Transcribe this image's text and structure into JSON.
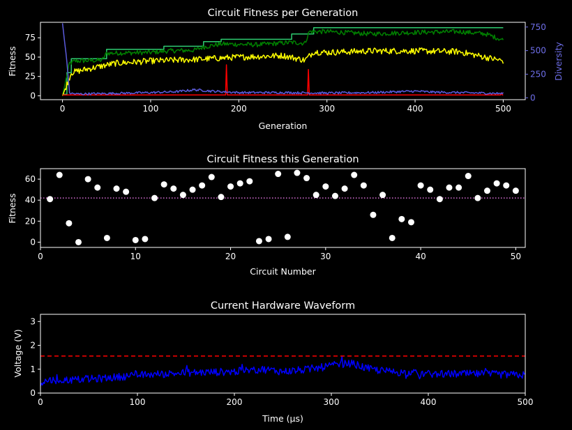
{
  "figure": {
    "background": "#000000"
  },
  "chart_data": [
    {
      "id": "fitness-per-generation",
      "type": "line",
      "title": "Circuit Fitness per Generation",
      "xlabel": "Generation",
      "ylabel": "Fitness",
      "ylabel_right": "Diversity",
      "xlim": [
        -25,
        525
      ],
      "ylim": [
        -5,
        95
      ],
      "ylim_right": [
        -20,
        800
      ],
      "x_ticks": [
        0,
        100,
        200,
        300,
        400,
        500
      ],
      "y_ticks": [
        0,
        25,
        50,
        75
      ],
      "y_ticks_right": [
        0,
        250,
        500,
        750
      ],
      "right_axis_color": "#6e6ee8",
      "grid": false,
      "series": [
        {
          "color": "#2ecc71",
          "axis": "left",
          "style": "step",
          "x": [
            0,
            5,
            10,
            45,
            50,
            100,
            115,
            150,
            160,
            175,
            180,
            225,
            255,
            260,
            280,
            285,
            500
          ],
          "values": [
            2,
            30,
            48,
            48,
            60,
            60,
            64,
            64,
            70,
            70,
            73,
            73,
            73,
            80,
            80,
            88,
            88
          ]
        },
        {
          "color": "#008000",
          "axis": "left",
          "style": "noisy",
          "noise": 3,
          "x": [
            0,
            8,
            15,
            45,
            50,
            100,
            120,
            150,
            160,
            180,
            220,
            260,
            275,
            280,
            300,
            350,
            400,
            450,
            480,
            500
          ],
          "values": [
            0,
            42,
            45,
            46,
            55,
            56,
            58,
            59,
            63,
            67,
            66,
            69,
            68,
            83,
            83,
            80,
            82,
            83,
            80,
            72
          ]
        },
        {
          "color": "#ffff00",
          "axis": "left",
          "style": "noisy",
          "noise": 4,
          "x": [
            0,
            5,
            10,
            30,
            60,
            100,
            150,
            200,
            250,
            275,
            285,
            300,
            350,
            400,
            450,
            500
          ],
          "values": [
            0,
            15,
            30,
            35,
            42,
            45,
            47,
            50,
            52,
            46,
            57,
            56,
            58,
            58,
            57,
            45
          ]
        },
        {
          "color": "#ff0000",
          "axis": "left",
          "style": "spikes",
          "base": 1,
          "spikes": [
            [
              186,
              40
            ],
            [
              279,
              34
            ],
            [
              498,
              4
            ]
          ]
        },
        {
          "color": "#5b5bdc",
          "axis": "right",
          "style": "noisy",
          "noise": 12,
          "x": [
            0,
            5,
            8,
            15,
            50,
            100,
            130,
            150,
            170,
            200,
            250,
            300,
            350,
            400,
            420,
            450,
            500
          ],
          "values": [
            790,
            380,
            50,
            40,
            45,
            55,
            65,
            85,
            70,
            55,
            55,
            50,
            55,
            70,
            60,
            55,
            45
          ]
        }
      ]
    },
    {
      "id": "fitness-this-generation",
      "type": "scatter",
      "title": "Circuit Fitness this Generation",
      "xlabel": "Circuit Number",
      "ylabel": "Fitness",
      "xlim": [
        0,
        51
      ],
      "ylim": [
        -5,
        70
      ],
      "x_ticks": [
        0,
        10,
        20,
        30,
        40,
        50
      ],
      "y_ticks": [
        0,
        20,
        40,
        60
      ],
      "point_color": "#ffffff",
      "reference_line": {
        "value": 42,
        "color": "#da70d6",
        "style": "dotted"
      },
      "x": [
        1,
        2,
        3,
        4,
        5,
        6,
        7,
        8,
        9,
        10,
        11,
        12,
        13,
        14,
        15,
        16,
        17,
        18,
        19,
        20,
        21,
        22,
        23,
        24,
        25,
        26,
        27,
        28,
        29,
        30,
        31,
        32,
        33,
        34,
        35,
        36,
        37,
        38,
        39,
        40,
        41,
        42,
        43,
        44,
        45,
        46,
        47,
        48,
        49,
        50
      ],
      "values": [
        41,
        64,
        18,
        0,
        60,
        52,
        4,
        51,
        48,
        2,
        3,
        42,
        55,
        51,
        45,
        50,
        54,
        62,
        43,
        53,
        56,
        58,
        1,
        3,
        65,
        5,
        66,
        61,
        45,
        53,
        44,
        51,
        64,
        54,
        26,
        45,
        4,
        22,
        19,
        54,
        50,
        41,
        52,
        52,
        63,
        42,
        49,
        56,
        54,
        49
      ]
    },
    {
      "id": "hardware-waveform",
      "type": "line",
      "title": "Current Hardware Waveform",
      "xlabel": "Time (µs)",
      "ylabel": "Voltage (V)",
      "xlim": [
        0,
        500
      ],
      "ylim": [
        0,
        3.3
      ],
      "x_ticks": [
        0,
        100,
        200,
        300,
        400,
        500
      ],
      "y_ticks": [
        0,
        1,
        2,
        3
      ],
      "line_color": "#0000ff",
      "noise": 0.16,
      "x": [
        0,
        10,
        30,
        60,
        100,
        150,
        200,
        230,
        250,
        280,
        300,
        320,
        340,
        360,
        400,
        450,
        500
      ],
      "values": [
        0.45,
        0.55,
        0.55,
        0.6,
        0.75,
        0.85,
        0.9,
        1.0,
        0.9,
        1.0,
        1.15,
        1.25,
        1.0,
        0.9,
        0.8,
        0.8,
        0.75
      ],
      "reference_line": {
        "value": 1.55,
        "color": "#ff0000",
        "style": "dashed"
      }
    }
  ]
}
